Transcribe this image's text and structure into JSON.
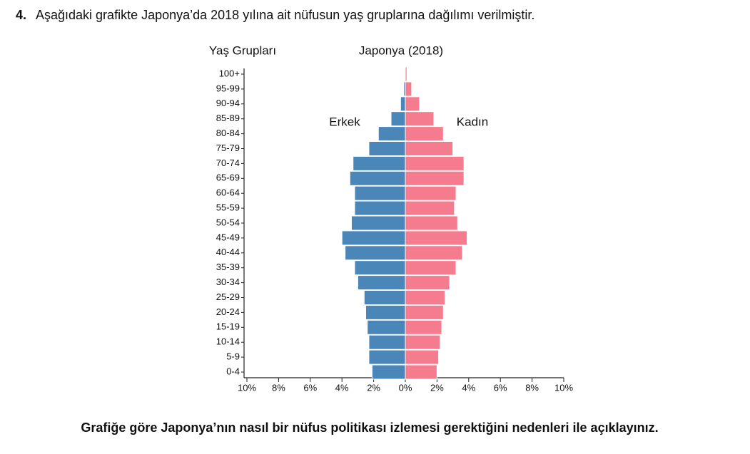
{
  "question": {
    "number": "4.",
    "text": "Aşağıdaki grafikte Japonya’da 2018 yılına ait nüfusun yaş gruplarına dağılımı verilmiştir.",
    "prompt": "Grafiğe göre Japonya’nın nasıl bir nüfus politikası izlemesi gerektiğini nedenleri ile açıklayınız."
  },
  "chart_data": {
    "type": "pyramid",
    "title": "Japonya (2018)",
    "y_label": "Yaş Grupları",
    "categories": [
      "0-4",
      "5-9",
      "10-14",
      "15-19",
      "20-24",
      "25-29",
      "30-34",
      "35-39",
      "40-44",
      "45-49",
      "50-54",
      "55-59",
      "60-64",
      "65-69",
      "70-74",
      "75-79",
      "80-84",
      "85-89",
      "90-94",
      "95-99",
      "100+"
    ],
    "series": [
      {
        "name": "Erkek",
        "color": "#4a86b8",
        "values": [
          -2.1,
          -2.3,
          -2.3,
          -2.4,
          -2.5,
          -2.6,
          -3.0,
          -3.2,
          -3.8,
          -4.0,
          -3.4,
          -3.2,
          -3.2,
          -3.5,
          -3.3,
          -2.3,
          -1.7,
          -0.9,
          -0.3,
          -0.1,
          0.0
        ]
      },
      {
        "name": "Kadın",
        "color": "#f47c8e",
        "values": [
          2.0,
          2.1,
          2.2,
          2.3,
          2.4,
          2.5,
          2.8,
          3.2,
          3.6,
          3.9,
          3.3,
          3.1,
          3.2,
          3.7,
          3.7,
          3.0,
          2.4,
          1.8,
          0.9,
          0.4,
          0.1
        ]
      }
    ],
    "xlim": [
      -10,
      10
    ],
    "xticks": [
      {
        "value": -10,
        "label": "10%"
      },
      {
        "value": -8,
        "label": "8%"
      },
      {
        "value": -6,
        "label": "6%"
      },
      {
        "value": -4,
        "label": "4%"
      },
      {
        "value": -2,
        "label": "2%"
      },
      {
        "value": 0,
        "label": "0%"
      },
      {
        "value": 2,
        "label": "2%"
      },
      {
        "value": 4,
        "label": "4%"
      },
      {
        "value": 6,
        "label": "6%"
      },
      {
        "value": 8,
        "label": "8%"
      },
      {
        "value": 10,
        "label": "10%"
      }
    ]
  }
}
